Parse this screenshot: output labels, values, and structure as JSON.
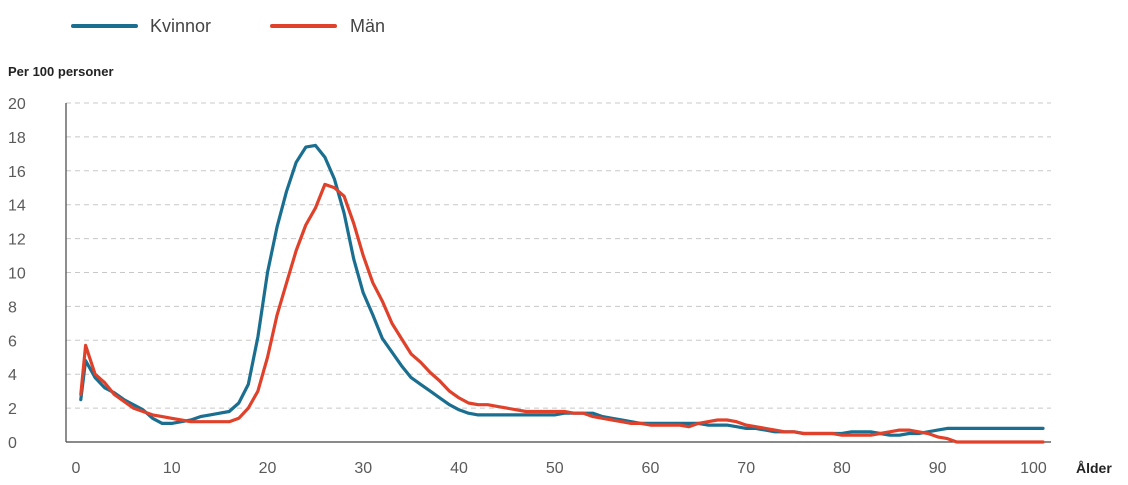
{
  "chart_data": {
    "type": "line",
    "title": "",
    "ylabel": "Per 100 personer",
    "xlabel": "Ålder",
    "xlim": [
      0,
      101
    ],
    "ylim": [
      0,
      20
    ],
    "xticks": [
      0,
      10,
      20,
      30,
      40,
      50,
      60,
      70,
      80,
      90,
      100
    ],
    "yticks": [
      0,
      2,
      4,
      6,
      8,
      10,
      12,
      14,
      16,
      18,
      20
    ],
    "grid": true,
    "legend_position": "top-left",
    "series": [
      {
        "name": "Kvinnor",
        "color": "#1a6f91",
        "x": [
          0.5,
          1,
          2,
          3,
          4,
          5,
          6,
          7,
          8,
          9,
          10,
          11,
          12,
          13,
          14,
          15,
          16,
          17,
          18,
          19,
          20,
          21,
          22,
          23,
          24,
          25,
          26,
          27,
          28,
          29,
          30,
          31,
          32,
          33,
          34,
          35,
          36,
          37,
          38,
          39,
          40,
          41,
          42,
          43,
          44,
          45,
          46,
          47,
          48,
          49,
          50,
          51,
          52,
          53,
          54,
          55,
          56,
          57,
          58,
          59,
          60,
          61,
          62,
          63,
          64,
          65,
          66,
          67,
          68,
          69,
          70,
          71,
          72,
          73,
          74,
          75,
          76,
          77,
          78,
          79,
          80,
          81,
          82,
          83,
          84,
          85,
          86,
          87,
          88,
          89,
          90,
          91,
          92,
          93,
          94,
          95,
          96,
          97,
          98,
          99,
          100,
          101
        ],
        "y": [
          2.5,
          4.8,
          3.8,
          3.2,
          2.9,
          2.5,
          2.2,
          1.9,
          1.4,
          1.1,
          1.1,
          1.2,
          1.3,
          1.5,
          1.6,
          1.7,
          1.8,
          2.3,
          3.4,
          6.2,
          10.0,
          12.7,
          14.8,
          16.5,
          17.4,
          17.5,
          16.8,
          15.5,
          13.5,
          10.8,
          8.8,
          7.5,
          6.1,
          5.3,
          4.5,
          3.8,
          3.4,
          3.0,
          2.6,
          2.2,
          1.9,
          1.7,
          1.6,
          1.6,
          1.6,
          1.6,
          1.6,
          1.6,
          1.6,
          1.6,
          1.6,
          1.7,
          1.7,
          1.7,
          1.7,
          1.5,
          1.4,
          1.3,
          1.2,
          1.1,
          1.1,
          1.1,
          1.1,
          1.1,
          1.1,
          1.1,
          1.0,
          1.0,
          1.0,
          0.9,
          0.8,
          0.8,
          0.7,
          0.6,
          0.6,
          0.6,
          0.5,
          0.5,
          0.5,
          0.5,
          0.5,
          0.6,
          0.6,
          0.6,
          0.5,
          0.4,
          0.4,
          0.5,
          0.5,
          0.6,
          0.7,
          0.8,
          0.8,
          0.8,
          0.8,
          0.8,
          0.8,
          0.8,
          0.8,
          0.8,
          0.8,
          0.8
        ]
      },
      {
        "name": "Män",
        "color": "#e0412a",
        "x": [
          0.5,
          1,
          2,
          3,
          4,
          5,
          6,
          7,
          8,
          9,
          10,
          11,
          12,
          13,
          14,
          15,
          16,
          17,
          18,
          19,
          20,
          21,
          22,
          23,
          24,
          25,
          26,
          27,
          28,
          29,
          30,
          31,
          32,
          33,
          34,
          35,
          36,
          37,
          38,
          39,
          40,
          41,
          42,
          43,
          44,
          45,
          46,
          47,
          48,
          49,
          50,
          51,
          52,
          53,
          54,
          55,
          56,
          57,
          58,
          59,
          60,
          61,
          62,
          63,
          64,
          65,
          66,
          67,
          68,
          69,
          70,
          71,
          72,
          73,
          74,
          75,
          76,
          77,
          78,
          79,
          80,
          81,
          82,
          83,
          84,
          85,
          86,
          87,
          88,
          89,
          90,
          91,
          92,
          93,
          94,
          95,
          96,
          97,
          98,
          99,
          100,
          101
        ],
        "y": [
          2.8,
          5.7,
          4.0,
          3.5,
          2.8,
          2.4,
          2.0,
          1.8,
          1.6,
          1.5,
          1.4,
          1.3,
          1.2,
          1.2,
          1.2,
          1.2,
          1.2,
          1.4,
          2.0,
          3.0,
          5.0,
          7.5,
          9.4,
          11.3,
          12.8,
          13.8,
          15.2,
          15.0,
          14.5,
          12.9,
          11.0,
          9.4,
          8.3,
          7.0,
          6.1,
          5.2,
          4.7,
          4.1,
          3.6,
          3.0,
          2.6,
          2.3,
          2.2,
          2.2,
          2.1,
          2.0,
          1.9,
          1.8,
          1.8,
          1.8,
          1.8,
          1.8,
          1.7,
          1.7,
          1.5,
          1.4,
          1.3,
          1.2,
          1.1,
          1.1,
          1.0,
          1.0,
          1.0,
          1.0,
          0.9,
          1.1,
          1.2,
          1.3,
          1.3,
          1.2,
          1.0,
          0.9,
          0.8,
          0.7,
          0.6,
          0.6,
          0.5,
          0.5,
          0.5,
          0.5,
          0.4,
          0.4,
          0.4,
          0.4,
          0.5,
          0.6,
          0.7,
          0.7,
          0.6,
          0.5,
          0.3,
          0.2,
          0.0,
          0.0,
          0.0,
          0.0,
          0.0,
          0.0,
          0.0,
          0.0,
          0.0,
          0.0
        ]
      }
    ]
  }
}
